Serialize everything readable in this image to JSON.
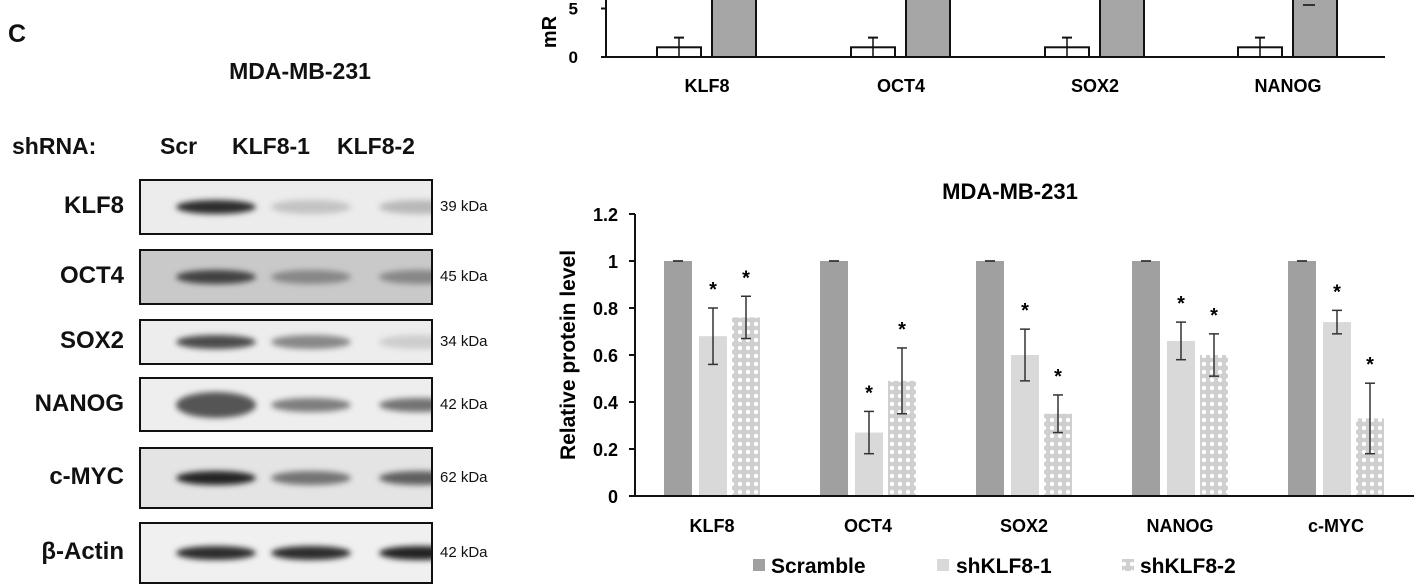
{
  "panel_letter": "C",
  "blot": {
    "title": "MDA-MB-231",
    "shrna_label": "shRNA:",
    "lanes": [
      "Scr",
      "KLF8-1",
      "KLF8-2"
    ],
    "rows": [
      {
        "label": "KLF8",
        "kda": "39 kDa",
        "band_intensity": [
          0.95,
          0.2,
          0.25
        ]
      },
      {
        "label": "OCT4",
        "kda": "45 kDa",
        "band_intensity": [
          0.85,
          0.5,
          0.5
        ]
      },
      {
        "label": "SOX2",
        "kda": "34 kDa",
        "band_intensity": [
          0.8,
          0.5,
          0.15
        ]
      },
      {
        "label": "NANOG",
        "kda": "42 kDa",
        "band_intensity": [
          0.75,
          0.55,
          0.6
        ]
      },
      {
        "label": "c-MYC",
        "kda": "62 kDa",
        "band_intensity": [
          1.0,
          0.6,
          0.7
        ]
      },
      {
        "label": "β-Actin",
        "kda": "42 kDa",
        "band_intensity": [
          0.95,
          0.95,
          1.0
        ]
      }
    ]
  },
  "chart_data": [
    {
      "type": "bar",
      "title": "",
      "ylabel": "mR",
      "categories": [
        "KLF8",
        "OCT4",
        "SOX2",
        "NANOG"
      ],
      "yticks": [
        "0",
        "5"
      ],
      "ylim_visible": [
        0,
        5.8
      ],
      "series": [
        {
          "values": [
            1,
            1,
            1,
            1
          ],
          "errors": [
            1,
            1,
            1,
            1
          ],
          "color": "#ffffff"
        },
        {
          "values": [
            null,
            null,
            null,
            null
          ],
          "clipped_above": true,
          "color": "#a6a6a6"
        }
      ]
    },
    {
      "type": "bar",
      "title": "MDA-MB-231",
      "ylabel": "Relative protein level",
      "xlabel": "",
      "categories": [
        "KLF8",
        "OCT4",
        "SOX2",
        "NANOG",
        "c-MYC"
      ],
      "ylim": [
        0,
        1.2
      ],
      "yticks": [
        "0",
        "0.2",
        "0.4",
        "0.6",
        "0.8",
        "1",
        "1.2"
      ],
      "legend_position": "bottom",
      "significance_marker": "*",
      "series": [
        {
          "name": "Scramble",
          "values": [
            1,
            1,
            1,
            1,
            1
          ],
          "errors": [
            0,
            0,
            0,
            0,
            0
          ],
          "significant": [
            false,
            false,
            false,
            false,
            false
          ],
          "color": "#a0a0a0",
          "pattern": "solid"
        },
        {
          "name": "shKLF8-1",
          "values": [
            0.68,
            0.27,
            0.6,
            0.66,
            0.74
          ],
          "errors": [
            0.12,
            0.09,
            0.11,
            0.08,
            0.05
          ],
          "significant": [
            true,
            true,
            true,
            true,
            true
          ],
          "color": "#d9d9d9",
          "pattern": "solid"
        },
        {
          "name": "shKLF8-2",
          "values": [
            0.76,
            0.49,
            0.35,
            0.6,
            0.33
          ],
          "errors": [
            0.09,
            0.14,
            0.08,
            0.09,
            0.15
          ],
          "significant": [
            true,
            true,
            true,
            true,
            true
          ],
          "color": "#cfcfcf",
          "pattern": "dots"
        }
      ]
    }
  ]
}
